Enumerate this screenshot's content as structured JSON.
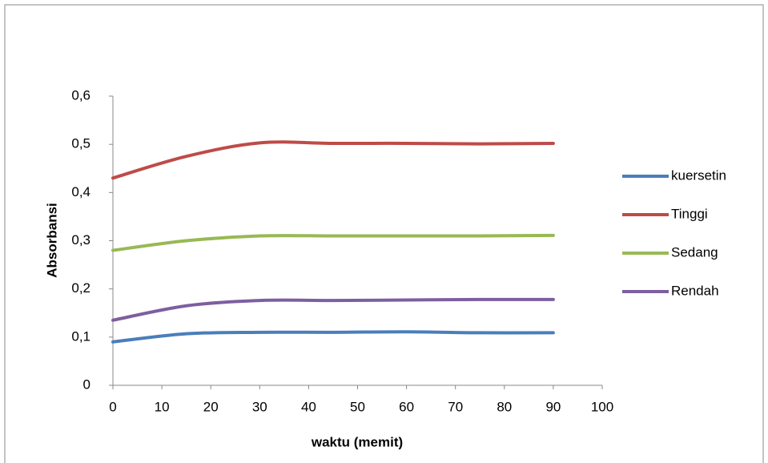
{
  "chart_data": {
    "type": "line",
    "x_label": "waktu (memit)",
    "y_label": "Absorbansi",
    "x": [
      0,
      15,
      30,
      45,
      60,
      75,
      90
    ],
    "series": [
      {
        "name": "kuersetin",
        "color": "#4a7ebb",
        "values": [
          0.09,
          0.107,
          0.11,
          0.11,
          0.111,
          0.109,
          0.109
        ]
      },
      {
        "name": "Tinggi",
        "color": "#be4b48",
        "values": [
          0.43,
          0.475,
          0.503,
          0.502,
          0.502,
          0.501,
          0.502
        ]
      },
      {
        "name": "Sedang",
        "color": "#98b954",
        "values": [
          0.28,
          0.3,
          0.31,
          0.31,
          0.31,
          0.31,
          0.311
        ]
      },
      {
        "name": "Rendah",
        "color": "#7d5fa0",
        "values": [
          0.135,
          0.165,
          0.176,
          0.176,
          0.177,
          0.178,
          0.178
        ]
      }
    ],
    "xlim": [
      0,
      100
    ],
    "xticks": [
      0,
      10,
      20,
      30,
      40,
      50,
      60,
      70,
      80,
      90,
      100
    ],
    "ylim": [
      0,
      0.6
    ],
    "yticks": [
      0,
      {
        "value": 0.1,
        "label": "0,1"
      },
      {
        "value": 0.2,
        "label": "0,2"
      },
      {
        "value": 0.3,
        "label": "0,3"
      },
      {
        "value": 0.4,
        "label": "0,4"
      },
      {
        "value": 0.5,
        "label": "0,5"
      },
      {
        "value": 0.6,
        "label": "0,6"
      }
    ],
    "grid": false,
    "legend": "right"
  }
}
